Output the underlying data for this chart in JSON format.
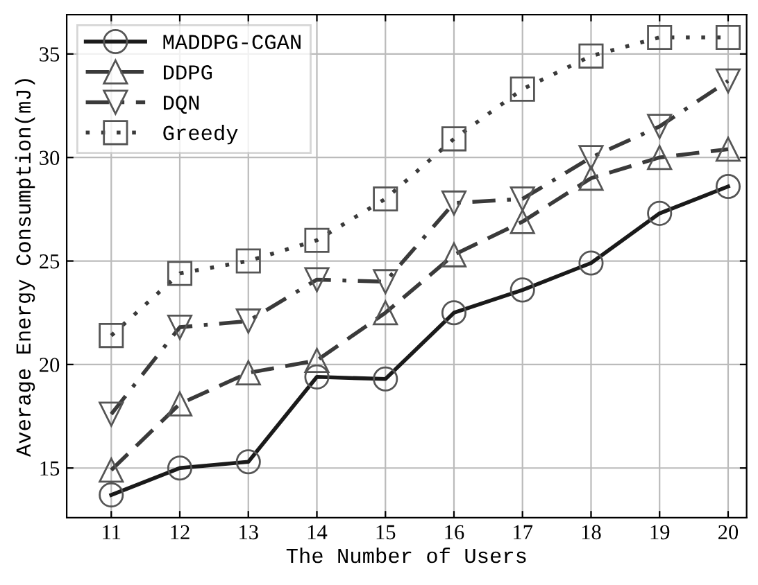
{
  "chart_data": {
    "type": "line",
    "xlabel": "The Number of Users",
    "ylabel": "Average Energy Consumption(mJ)",
    "x": [
      11,
      12,
      13,
      14,
      15,
      16,
      17,
      18,
      19,
      20
    ],
    "series": [
      {
        "name": "MADDPG-CGAN",
        "color": "#1a1a1a",
        "marker": "circle",
        "line_style": "solid",
        "values": [
          13.7,
          15.0,
          15.3,
          19.4,
          19.3,
          22.5,
          23.6,
          24.9,
          27.3,
          28.6
        ]
      },
      {
        "name": "DDPG",
        "color": "#3a3a3a",
        "marker": "triangle",
        "line_style": "dashed",
        "values": [
          14.9,
          18.1,
          19.6,
          20.2,
          22.5,
          25.3,
          26.9,
          29.0,
          30.0,
          30.4
        ]
      },
      {
        "name": "DQN",
        "color": "#3a3a3a",
        "marker": "triangle_down",
        "line_style": "dashdot",
        "values": [
          17.6,
          21.8,
          22.1,
          24.1,
          24.0,
          27.8,
          28.0,
          30.0,
          31.5,
          33.7
        ]
      },
      {
        "name": "Greedy",
        "color": "#3a3a3a",
        "marker": "square",
        "line_style": "dotted",
        "values": [
          21.4,
          24.4,
          25.0,
          26.0,
          28.0,
          30.9,
          33.3,
          34.9,
          35.8,
          35.8
        ]
      }
    ],
    "xlim": [
      10.35,
      20.27
    ],
    "ylim": [
      12.6,
      36.9
    ],
    "xticks": [
      11,
      12,
      13,
      14,
      15,
      16,
      17,
      18,
      19,
      20
    ],
    "yticks": [
      15,
      20,
      25,
      30,
      35
    ],
    "grid": true,
    "legend": "top left"
  }
}
